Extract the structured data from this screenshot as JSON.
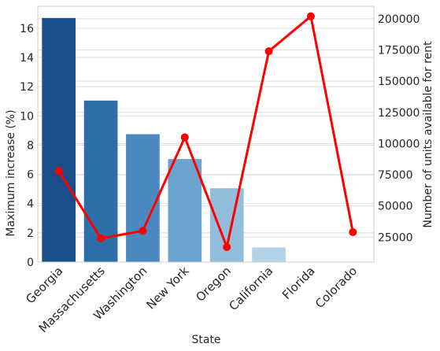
{
  "chart_data": {
    "type": "bar",
    "categories": [
      "Georgia",
      "Massachusetts",
      "Washington",
      "New York",
      "Oregon",
      "California",
      "Florida",
      "Colorado"
    ],
    "xlabel": "State",
    "ylabel": "Maximum increase (%)",
    "y2label": "Number of units available for rent",
    "ylim": [
      0,
      17.5
    ],
    "y2lim": [
      5000,
      210000
    ],
    "yticks": [
      0,
      2,
      4,
      6,
      8,
      10,
      12,
      14,
      16
    ],
    "y2ticks": [
      25000,
      50000,
      75000,
      100000,
      125000,
      150000,
      175000,
      200000
    ],
    "grid": true,
    "series": [
      {
        "type": "bar",
        "values": [
          16.7,
          11.05,
          8.75,
          7.05,
          5.05,
          1.0,
          0,
          0
        ],
        "colors": [
          "#1a4e8a",
          "#2c6fa9",
          "#4a8ac0",
          "#6aa4cf",
          "#92bddb",
          "#b3d2e6",
          "#c9def0",
          "#dbe9f6"
        ]
      },
      {
        "type": "line",
        "axis": "right",
        "values": [
          78000,
          24000,
          30000,
          105000,
          17000,
          174000,
          202000,
          29000
        ],
        "color": "#ff0000"
      }
    ]
  }
}
